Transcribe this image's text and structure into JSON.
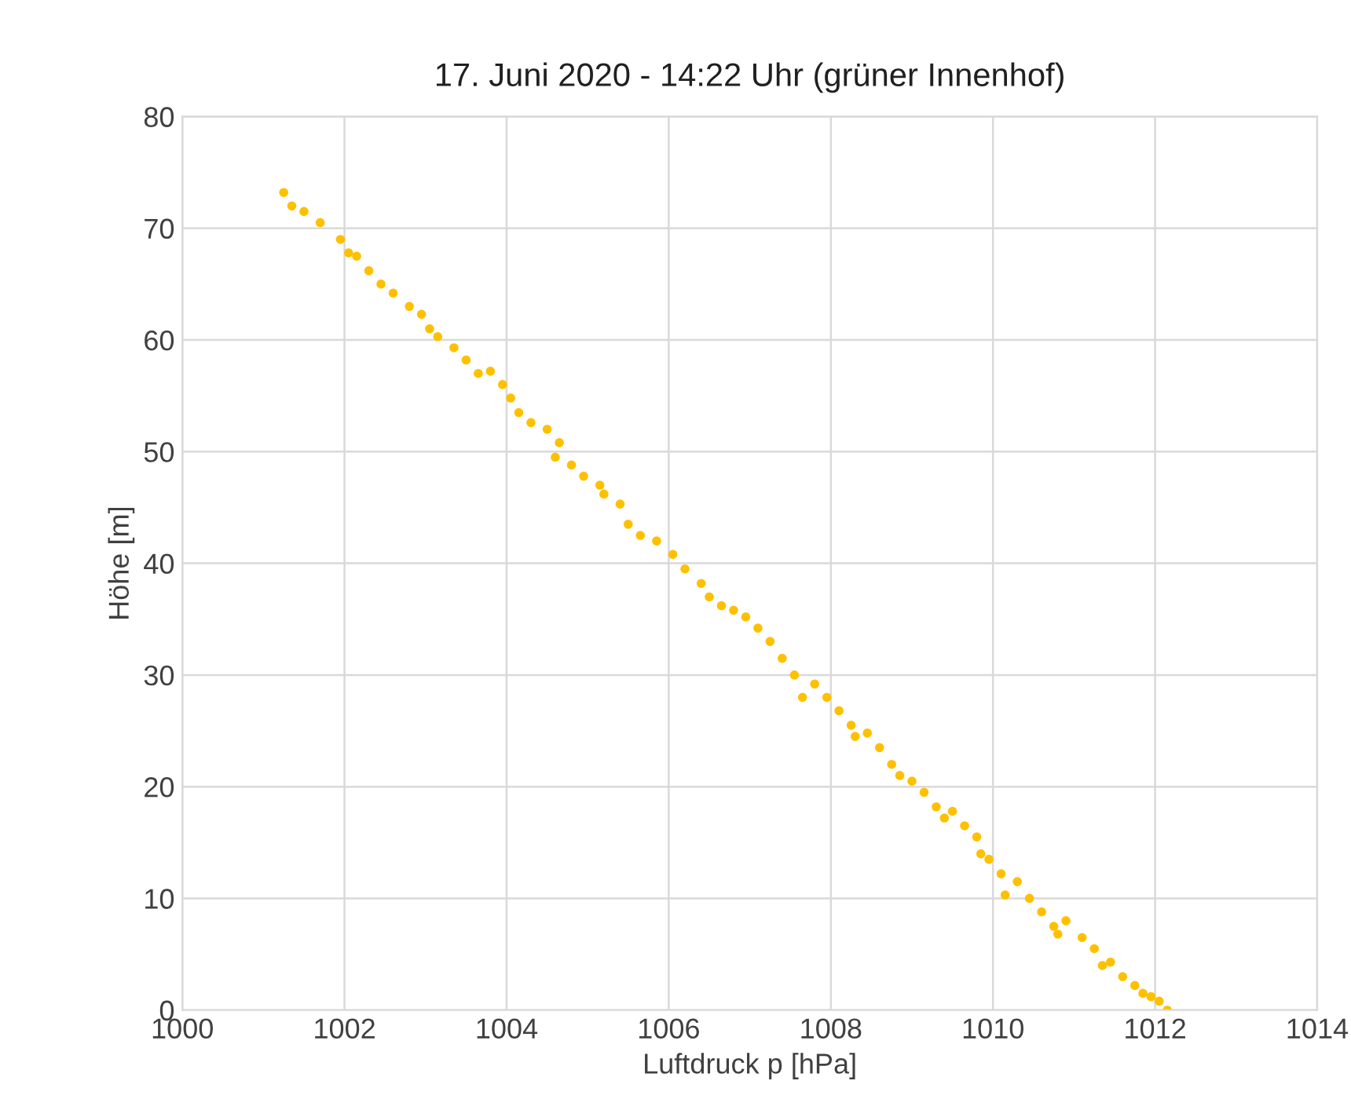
{
  "chart_data": {
    "type": "scatter",
    "title": "17. Juni 2020 - 14:22 Uhr (grüner Innenhof)",
    "xlabel": "Luftdruck p [hPa]",
    "ylabel": "Höhe [m]",
    "x": [
      1001.25,
      1001.35,
      1001.5,
      1001.7,
      1001.95,
      1002.05,
      1002.15,
      1002.3,
      1002.45,
      1002.6,
      1002.8,
      1002.95,
      1003.05,
      1003.15,
      1003.35,
      1003.5,
      1003.65,
      1003.8,
      1003.95,
      1004.05,
      1004.15,
      1004.3,
      1004.5,
      1004.65,
      1004.6,
      1004.8,
      1004.95,
      1005.15,
      1005.2,
      1005.4,
      1005.5,
      1005.65,
      1005.85,
      1006.05,
      1006.2,
      1006.4,
      1006.5,
      1006.65,
      1006.8,
      1006.95,
      1007.1,
      1007.25,
      1007.4,
      1007.55,
      1007.65,
      1007.8,
      1007.95,
      1008.1,
      1008.25,
      1008.3,
      1008.45,
      1008.6,
      1008.75,
      1008.85,
      1009.0,
      1009.15,
      1009.3,
      1009.4,
      1009.5,
      1009.65,
      1009.8,
      1009.85,
      1009.95,
      1010.1,
      1010.15,
      1010.3,
      1010.45,
      1010.6,
      1010.75,
      1010.8,
      1010.9,
      1011.1,
      1011.25,
      1011.35,
      1011.45,
      1011.6,
      1011.75,
      1011.85,
      1011.95,
      1012.05,
      1012.15
    ],
    "series": [
      {
        "color": "#ffc000",
        "values": [
          73.2,
          72,
          71.5,
          70.5,
          69,
          67.8,
          67.5,
          66.2,
          65,
          64.2,
          63,
          62.3,
          61,
          60.3,
          59.3,
          58.2,
          57,
          57.2,
          56,
          54.8,
          53.5,
          52.6,
          52,
          50.8,
          49.5,
          48.8,
          47.8,
          47,
          46.2,
          45.3,
          43.5,
          42.5,
          42,
          40.8,
          39.5,
          38.2,
          37,
          36.2,
          35.8,
          35.2,
          34.2,
          33,
          31.5,
          30,
          28,
          29.2,
          28,
          26.8,
          25.5,
          24.5,
          24.8,
          23.5,
          22,
          21,
          20.5,
          19.5,
          18.2,
          17.2,
          17.8,
          16.5,
          15.5,
          14,
          13.5,
          12.2,
          10.3,
          11.5,
          10,
          8.8,
          7.5,
          6.8,
          8,
          6.5,
          5.5,
          4,
          4.3,
          3,
          2.2,
          1.5,
          1.2,
          0.8,
          0
        ]
      }
    ],
    "xlim": [
      1000,
      1014
    ],
    "xticks": [
      1000,
      1002,
      1004,
      1006,
      1008,
      1010,
      1012,
      1014
    ],
    "ylim": [
      0,
      80
    ],
    "yticks": [
      0,
      10,
      20,
      30,
      40,
      50,
      60,
      70,
      80
    ],
    "grid": true,
    "marker": "circle"
  }
}
